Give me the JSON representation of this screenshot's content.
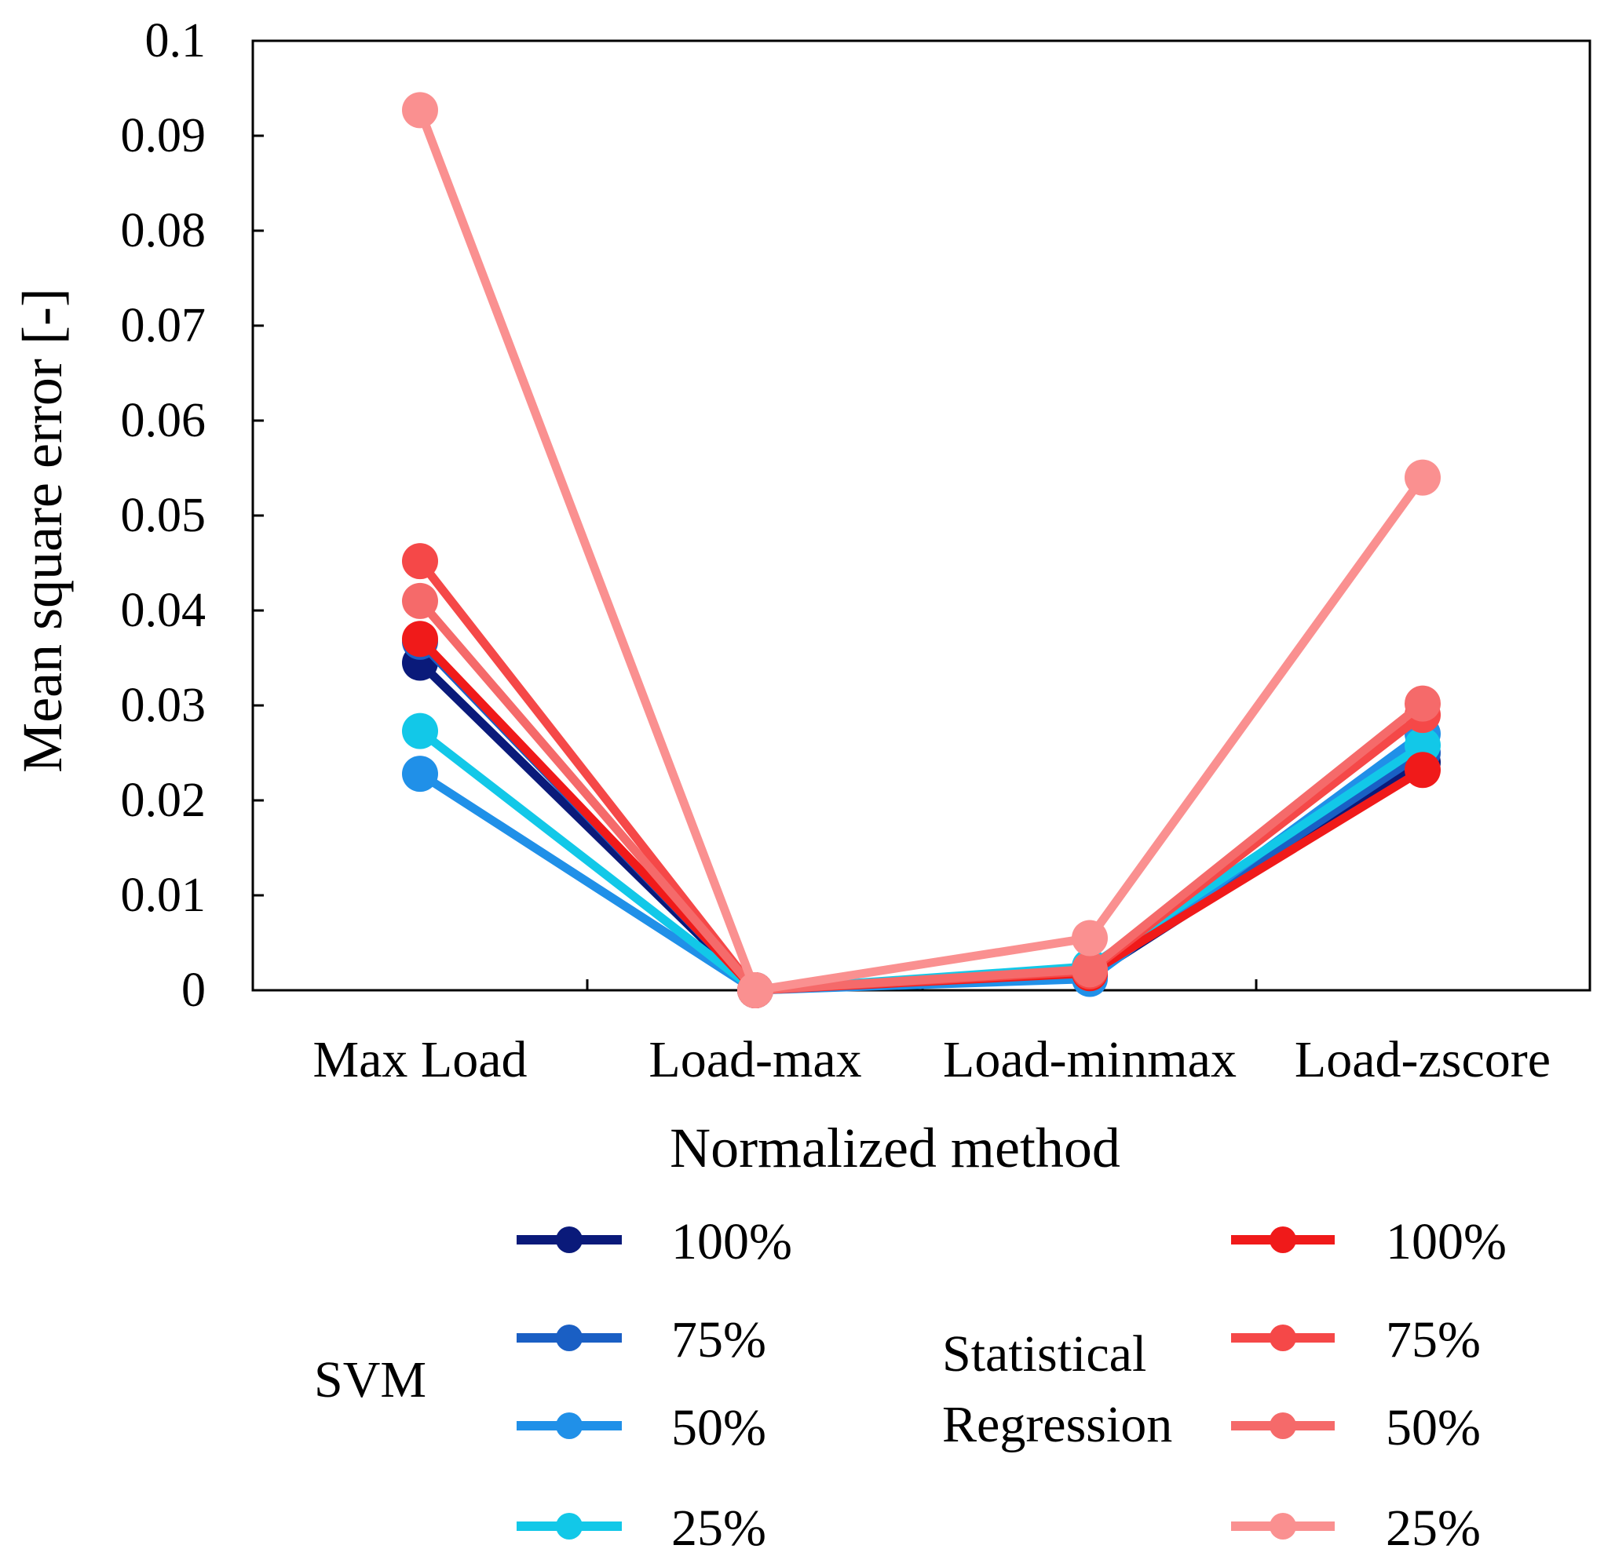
{
  "chart_data": {
    "type": "line",
    "xlabel": "Normalized method",
    "ylabel": "Mean square error [-]",
    "ylim": [
      0,
      0.1
    ],
    "yticks": [
      "0",
      "0.01",
      "0.02",
      "0.03",
      "0.04",
      "0.05",
      "0.06",
      "0.07",
      "0.08",
      "0.09",
      "0.1"
    ],
    "categories": [
      "Max Load",
      "Load-max",
      "Load-minmax",
      "Load-zscore"
    ],
    "groups": [
      {
        "name": "SVM",
        "series": [
          {
            "name": "100%",
            "color": "#0a1a7a",
            "values": [
              0.0345,
              0.0,
              0.0015,
              0.024
            ]
          },
          {
            "name": "75%",
            "color": "#1a5fc4",
            "values": [
              0.0367,
              0.0,
              0.0017,
              0.025
            ]
          },
          {
            "name": "50%",
            "color": "#2090e8",
            "values": [
              0.0228,
              0.0,
              0.0012,
              0.027
            ]
          },
          {
            "name": "25%",
            "color": "#12c8e8",
            "values": [
              0.0273,
              0.0,
              0.0025,
              0.0258
            ]
          }
        ]
      },
      {
        "name": "Statistical Regression",
        "name_lines": [
          "Statistical",
          "Regression"
        ],
        "series": [
          {
            "name": "100%",
            "color": "#f01a1a",
            "values": [
              0.037,
              0.0,
              0.0018,
              0.0232
            ]
          },
          {
            "name": "75%",
            "color": "#f54848",
            "values": [
              0.0452,
              0.0,
              0.002,
              0.029
            ]
          },
          {
            "name": "50%",
            "color": "#f56a6a",
            "values": [
              0.041,
              0.0,
              0.0022,
              0.0302
            ]
          },
          {
            "name": "25%",
            "color": "#fa9090",
            "values": [
              0.0927,
              0.0,
              0.0055,
              0.054
            ]
          }
        ]
      }
    ]
  }
}
